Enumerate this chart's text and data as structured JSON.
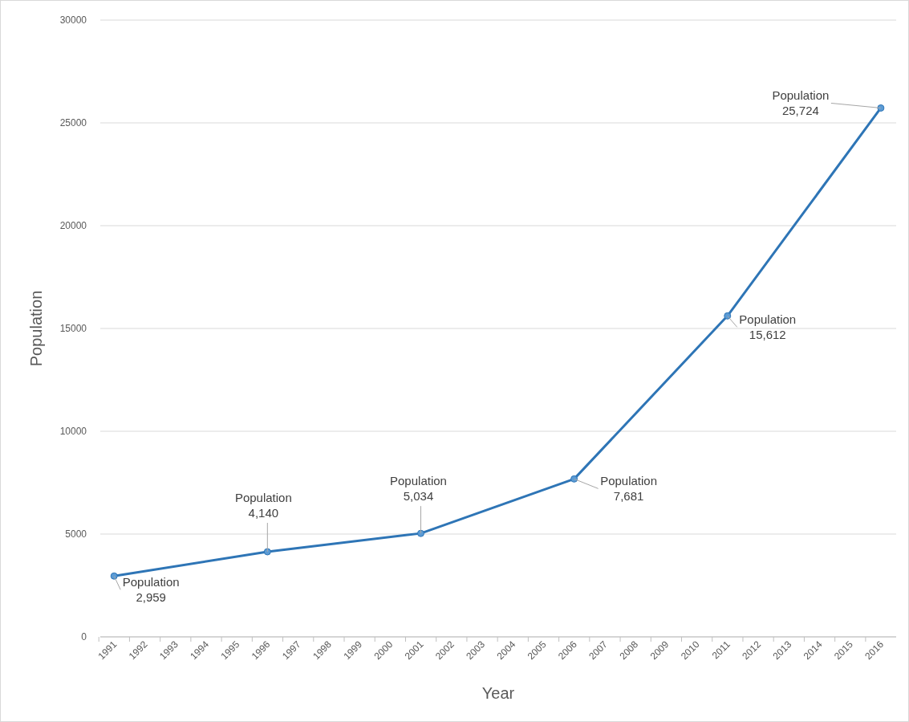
{
  "chart_data": {
    "type": "line",
    "xlabel": "Year",
    "ylabel": "Population",
    "x": [
      1991,
      1996,
      2001,
      2006,
      2011,
      2016
    ],
    "series": [
      {
        "name": "Population",
        "color": "#2e75b6",
        "values": [
          2959,
          4140,
          5034,
          7681,
          15612,
          25724
        ],
        "value_labels": [
          "2,959",
          "4,140",
          "5,034",
          "7,681",
          "15,612",
          "25,724"
        ]
      }
    ],
    "xlim": [
      1990.55,
      2016.5
    ],
    "xticks": [
      1991,
      1992,
      1993,
      1994,
      1995,
      1996,
      1997,
      1998,
      1999,
      2000,
      2001,
      2002,
      2003,
      2004,
      2005,
      2006,
      2007,
      2008,
      2009,
      2010,
      2011,
      2012,
      2013,
      2014,
      2015,
      2016
    ],
    "ylim": [
      0,
      30000
    ],
    "yticks": [
      0,
      5000,
      10000,
      15000,
      20000,
      25000,
      30000
    ],
    "grid": "y",
    "marker": "circle",
    "line_style": "solid"
  }
}
